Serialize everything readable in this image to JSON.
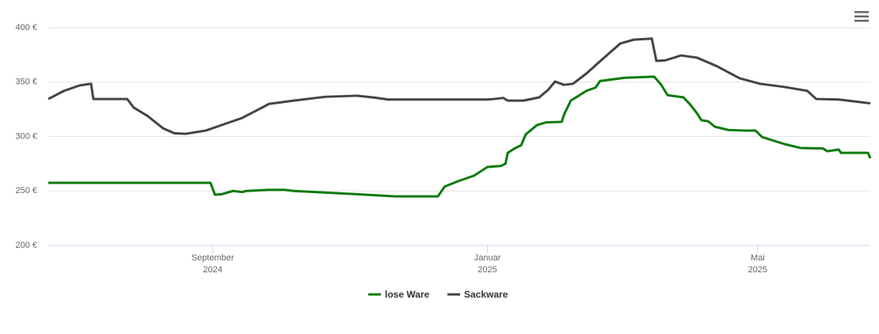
{
  "chart_data": {
    "type": "line",
    "xlim": [
      0,
      365
    ],
    "xticks": [
      {
        "value": 73,
        "label": [
          "September",
          "2024"
        ]
      },
      {
        "value": 195,
        "label": [
          "Januar",
          "2025"
        ]
      },
      {
        "value": 315,
        "label": [
          "Mai",
          "2025"
        ]
      }
    ],
    "ylim": [
      200,
      400
    ],
    "yticks": [
      {
        "value": 200,
        "label": "200 €"
      },
      {
        "value": 250,
        "label": "250 €"
      },
      {
        "value": 300,
        "label": "300 €"
      },
      {
        "value": 350,
        "label": "350 €"
      },
      {
        "value": 400,
        "label": "400 €"
      }
    ],
    "grid": true,
    "legend": "bottom",
    "series": [
      {
        "name": "lose Ware",
        "color": "#0b7a0b",
        "x": [
          0,
          72,
          74,
          77,
          82,
          86,
          88,
          98,
          105,
          109,
          137,
          154,
          173,
          176,
          182,
          189,
          192,
          195,
          201,
          203,
          204,
          207,
          210,
          212,
          217,
          221,
          228,
          229,
          232,
          239,
          243,
          245,
          256,
          269,
          272,
          275,
          282,
          285,
          288,
          290,
          293,
          296,
          302,
          309,
          314,
          317,
          327,
          334,
          344,
          346,
          351,
          352,
          364,
          365
        ],
        "values": [
          257.5,
          257.5,
          246.5,
          247,
          250,
          249,
          250,
          251,
          251,
          250,
          247,
          245,
          245,
          254,
          259,
          264,
          268,
          272,
          273,
          275,
          285,
          289,
          292,
          302,
          310.5,
          313,
          313.5,
          320,
          333,
          342,
          345,
          351,
          354,
          355,
          348,
          338,
          336,
          329.5,
          321.5,
          315,
          314,
          309,
          306,
          305.5,
          305.5,
          299.5,
          293,
          289.5,
          289,
          286.5,
          288,
          285,
          285,
          280
        ]
      },
      {
        "name": "Sackware",
        "color": "#434348",
        "x": [
          0,
          7,
          14,
          19,
          20,
          35,
          38,
          44,
          51,
          56,
          61,
          70,
          79,
          86,
          93,
          98,
          109,
          123,
          137,
          144,
          151,
          161,
          195,
          198,
          202,
          204,
          211,
          218,
          222,
          225,
          229,
          233,
          239,
          246,
          254,
          260,
          268,
          270,
          274,
          281,
          288,
          297,
          307,
          316,
          327,
          337,
          341,
          351,
          365
        ],
        "values": [
          334.5,
          342,
          347,
          348.5,
          334.5,
          334.5,
          326.5,
          319,
          307.5,
          303,
          302.5,
          305.5,
          312,
          317,
          324.5,
          330,
          333,
          336.5,
          337.5,
          336,
          334,
          334,
          334,
          334.5,
          335.5,
          333,
          333,
          336,
          343,
          350.5,
          347.5,
          348.5,
          358,
          371,
          385.5,
          389,
          390,
          369.5,
          370,
          374.5,
          372.5,
          364.5,
          353.5,
          348.5,
          345.5,
          342,
          334.5,
          334,
          330.5
        ]
      }
    ]
  }
}
